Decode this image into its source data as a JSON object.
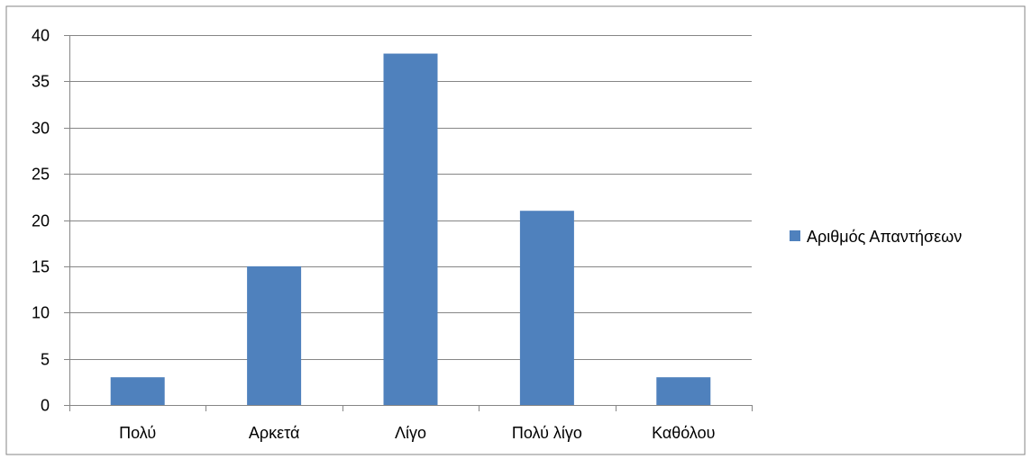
{
  "chart_data": {
    "type": "bar",
    "categories": [
      "Πολύ",
      "Αρκετά",
      "Λίγο",
      "Πολύ λίγο",
      "Καθόλου"
    ],
    "series": [
      {
        "name": "Αριθμός Απαντήσεων",
        "values": [
          3,
          15,
          38,
          21,
          3
        ],
        "color": "#4f81bd"
      }
    ],
    "ylim": [
      0,
      40
    ],
    "yticks": [
      0,
      5,
      10,
      15,
      20,
      25,
      30,
      35,
      40
    ],
    "grid": true,
    "legend_position": "right",
    "colors": {
      "gridline": "#868686",
      "axis": "#868686",
      "frame": "#868686"
    }
  }
}
